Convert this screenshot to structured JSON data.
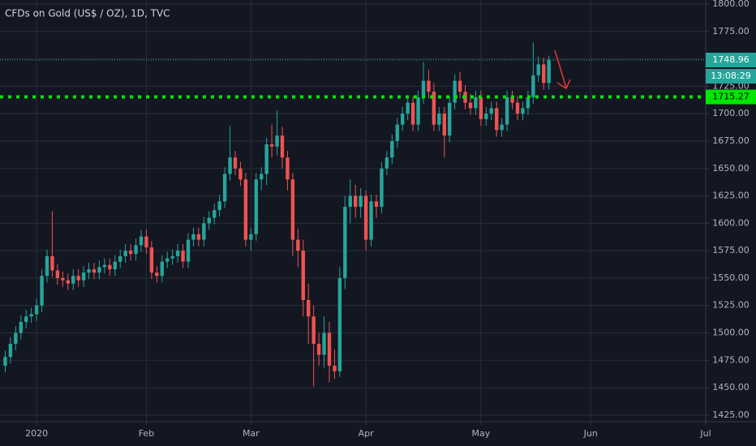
{
  "chart_data": {
    "type": "candlestick",
    "title": "CFDs on Gold (US$ / OZ), 1D, TVC",
    "colors": {
      "up": "#26a69a",
      "down": "#ef5350"
    },
    "xlim": [
      -1,
      134
    ],
    "xticks": [
      {
        "value": 6,
        "label": "2020"
      },
      {
        "value": 27,
        "label": "Feb"
      },
      {
        "value": 47,
        "label": "Mar"
      },
      {
        "value": 69,
        "label": "Apr"
      },
      {
        "value": 91,
        "label": "May"
      },
      {
        "value": 112,
        "label": "Jun"
      },
      {
        "value": 134,
        "label": "Jul"
      }
    ],
    "ylim": [
      1419,
      1803.7
    ],
    "yticks": [
      {
        "value": 1425,
        "label": "1425.00"
      },
      {
        "value": 1450,
        "label": "1450.00"
      },
      {
        "value": 1475,
        "label": "1475.00"
      },
      {
        "value": 1500,
        "label": "1500.00"
      },
      {
        "value": 1525,
        "label": "1525.00"
      },
      {
        "value": 1550,
        "label": "1550.00"
      },
      {
        "value": 1575,
        "label": "1575.00"
      },
      {
        "value": 1600,
        "label": "1600.00"
      },
      {
        "value": 1625,
        "label": "1625.00"
      },
      {
        "value": 1650,
        "label": "1650.00"
      },
      {
        "value": 1675,
        "label": "1675.00"
      },
      {
        "value": 1700,
        "label": "1700.00"
      },
      {
        "value": 1725,
        "label": "1725.00"
      },
      {
        "value": 1750,
        "label": "1750.00"
      },
      {
        "value": 1775,
        "label": "1775.00"
      },
      {
        "value": 1800,
        "label": "1800.00"
      }
    ],
    "grid": true,
    "open": [
      1470,
      1478,
      1490,
      1500,
      1510,
      1515,
      1517,
      1525,
      1552,
      1570,
      1557,
      1550,
      1548,
      1545,
      1552,
      1548,
      1555,
      1558,
      1555,
      1560,
      1562,
      1558,
      1565,
      1570,
      1575,
      1572,
      1580,
      1588,
      1578,
      1555,
      1552,
      1565,
      1568,
      1570,
      1575,
      1565,
      1585,
      1590,
      1585,
      1600,
      1605,
      1612,
      1620,
      1645,
      1660,
      1650,
      1640,
      1585,
      1590,
      1640,
      1645,
      1672,
      1670,
      1680,
      1660,
      1640,
      1585,
      1575,
      1530,
      1515,
      1490,
      1480,
      1500,
      1470,
      1465,
      1550,
      1615,
      1625,
      1615,
      1625,
      1585,
      1620,
      1615,
      1650,
      1660,
      1675,
      1690,
      1700,
      1710,
      1690,
      1715,
      1730,
      1720,
      1690,
      1700,
      1680,
      1710,
      1730,
      1720,
      1710,
      1705,
      1715,
      1695,
      1700,
      1705,
      1685,
      1690,
      1715,
      1710,
      1700,
      1705,
      1715,
      1735,
      1745,
      1728
    ],
    "high": [
      1484,
      1496,
      1506,
      1516,
      1521,
      1523,
      1531,
      1558,
      1576,
      1611,
      1563,
      1556,
      1554,
      1558,
      1558,
      1561,
      1564,
      1564,
      1566,
      1568,
      1568,
      1571,
      1576,
      1581,
      1581,
      1586,
      1594,
      1594,
      1584,
      1561,
      1571,
      1574,
      1576,
      1581,
      1581,
      1591,
      1596,
      1596,
      1606,
      1611,
      1618,
      1626,
      1651,
      1689,
      1666,
      1656,
      1646,
      1596,
      1646,
      1651,
      1678,
      1690,
      1703,
      1688,
      1666,
      1646,
      1595,
      1585,
      1545,
      1525,
      1500,
      1515,
      1510,
      1485,
      1560,
      1625,
      1640,
      1635,
      1632,
      1630,
      1626,
      1626,
      1656,
      1666,
      1681,
      1696,
      1706,
      1716,
      1716,
      1721,
      1747,
      1740,
      1728,
      1706,
      1706,
      1716,
      1736,
      1738,
      1726,
      1718,
      1721,
      1721,
      1706,
      1711,
      1711,
      1696,
      1721,
      1721,
      1716,
      1711,
      1721,
      1765,
      1752,
      1751,
      1753
    ],
    "low": [
      1464,
      1472,
      1484,
      1494,
      1504,
      1509,
      1511,
      1519,
      1546,
      1551,
      1544,
      1542,
      1539,
      1539,
      1542,
      1542,
      1549,
      1549,
      1549,
      1554,
      1552,
      1552,
      1559,
      1564,
      1566,
      1566,
      1574,
      1572,
      1549,
      1546,
      1546,
      1559,
      1562,
      1564,
      1559,
      1559,
      1579,
      1579,
      1579,
      1594,
      1599,
      1606,
      1614,
      1639,
      1644,
      1634,
      1579,
      1575,
      1584,
      1630,
      1635,
      1660,
      1662,
      1650,
      1630,
      1570,
      1560,
      1515,
      1490,
      1451,
      1470,
      1468,
      1455,
      1458,
      1460,
      1540,
      1600,
      1605,
      1605,
      1575,
      1579,
      1605,
      1609,
      1644,
      1654,
      1669,
      1684,
      1694,
      1684,
      1684,
      1709,
      1714,
      1684,
      1684,
      1660,
      1674,
      1704,
      1714,
      1704,
      1699,
      1699,
      1689,
      1689,
      1694,
      1679,
      1679,
      1684,
      1704,
      1694,
      1694,
      1699,
      1709,
      1729,
      1722,
      1722
    ],
    "close": [
      1478,
      1490,
      1500,
      1510,
      1515,
      1517,
      1525,
      1552,
      1570,
      1557,
      1550,
      1548,
      1545,
      1552,
      1548,
      1555,
      1558,
      1555,
      1560,
      1562,
      1558,
      1565,
      1570,
      1575,
      1572,
      1580,
      1588,
      1578,
      1555,
      1552,
      1565,
      1568,
      1570,
      1575,
      1565,
      1585,
      1590,
      1585,
      1600,
      1605,
      1612,
      1620,
      1645,
      1660,
      1650,
      1640,
      1585,
      1590,
      1640,
      1645,
      1672,
      1670,
      1680,
      1660,
      1640,
      1585,
      1575,
      1530,
      1515,
      1490,
      1480,
      1500,
      1470,
      1465,
      1550,
      1615,
      1625,
      1615,
      1625,
      1585,
      1620,
      1615,
      1650,
      1660,
      1675,
      1690,
      1700,
      1710,
      1690,
      1715,
      1730,
      1720,
      1690,
      1700,
      1680,
      1710,
      1730,
      1720,
      1710,
      1705,
      1715,
      1695,
      1700,
      1705,
      1685,
      1690,
      1715,
      1710,
      1700,
      1705,
      1715,
      1735,
      1745,
      1728,
      1748.96
    ],
    "level": {
      "value": 1715.27,
      "color": "#00e600"
    },
    "countdown": "13:08:29"
  }
}
